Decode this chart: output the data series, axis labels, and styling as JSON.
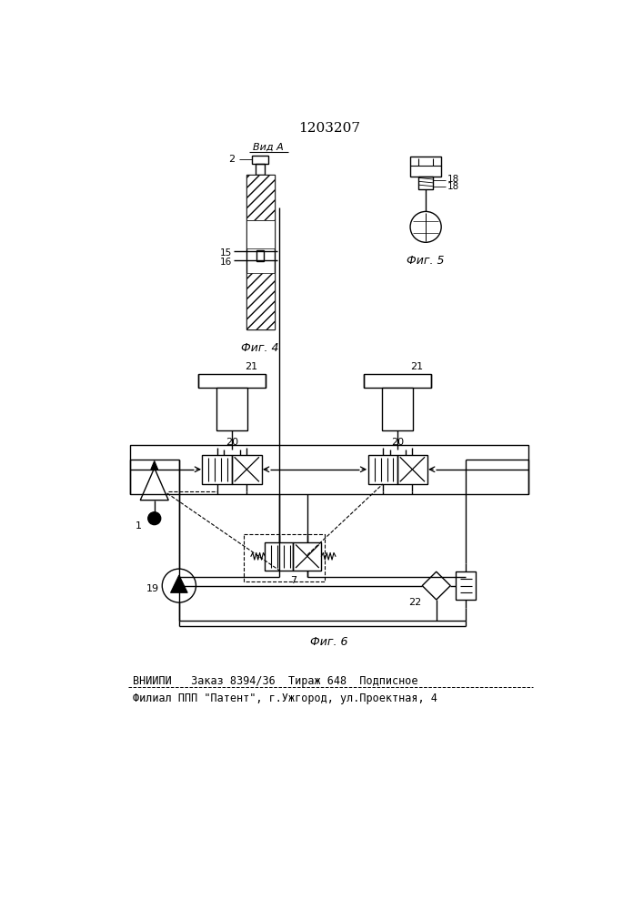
{
  "title": "1203207",
  "title_fontsize": 11,
  "bg_color": "#ffffff",
  "line_color": "#000000",
  "fig4_label": "Фиг. 4",
  "fig5_label": "Фиг. 5",
  "fig6_label": "Фиг. 6",
  "vida_label": "Вид A",
  "bottom_line1": "ВНИИПИ   Заказ 8394/36  Тираж 648  Подписное",
  "bottom_line2": "Филиал ППП \"Патент\", г.Ужгород, ул.Проектная, 4"
}
